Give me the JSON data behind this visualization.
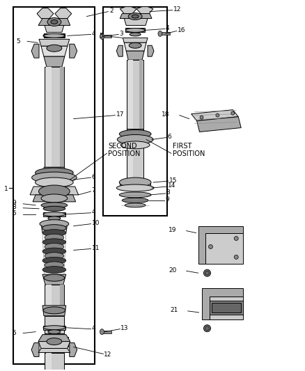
{
  "bg_color": "#ffffff",
  "lc": "#000000",
  "gray1": "#cccccc",
  "gray2": "#aaaaaa",
  "gray3": "#888888",
  "gray4": "#666666",
  "gray5": "#dddddd",
  "dark": "#444444",
  "second_position_text": "SECOND\nPOSITION",
  "first_position_text": "FIRST\nPOSITION",
  "label_fs": 6.5,
  "lw": 0.7
}
